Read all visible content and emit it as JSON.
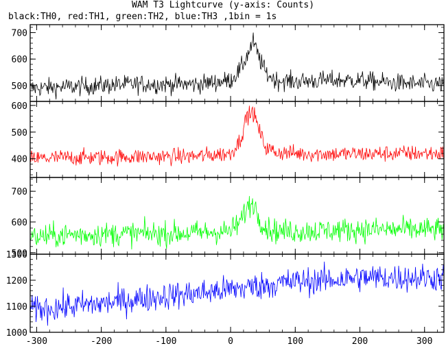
{
  "chart_data": {
    "type": "line",
    "title": "WAM T3 Lightcurve (y-axis: Counts)",
    "subtitle": "black:TH0, red:TH1, green:TH2, blue:TH3 ,1bin = 1s",
    "x_range": [
      -310,
      330
    ],
    "x_ticks": [
      -300,
      -200,
      -100,
      0,
      100,
      200,
      300
    ],
    "grid": false,
    "panels": [
      {
        "name": "TH0",
        "color": "#000000",
        "ylim": [
          440,
          730
        ],
        "y_ticks": [
          500,
          600,
          700
        ],
        "series_points": [
          [
            -310,
            490
          ],
          [
            -250,
            495
          ],
          [
            -200,
            500
          ],
          [
            -150,
            505
          ],
          [
            -100,
            505
          ],
          [
            -50,
            505
          ],
          [
            0,
            520
          ],
          [
            15,
            560
          ],
          [
            25,
            610
          ],
          [
            35,
            665
          ],
          [
            45,
            600
          ],
          [
            55,
            545
          ],
          [
            70,
            520
          ],
          [
            100,
            515
          ],
          [
            150,
            520
          ],
          [
            200,
            520
          ],
          [
            250,
            510
          ],
          [
            300,
            505
          ],
          [
            330,
            505
          ]
        ],
        "noise": 25
      },
      {
        "name": "TH1",
        "color": "#ff0000",
        "ylim": [
          330,
          615
        ],
        "y_ticks": [
          400,
          500,
          600
        ],
        "series_points": [
          [
            -310,
            400
          ],
          [
            -250,
            405
          ],
          [
            -200,
            405
          ],
          [
            -150,
            408
          ],
          [
            -100,
            408
          ],
          [
            -50,
            410
          ],
          [
            0,
            420
          ],
          [
            15,
            470
          ],
          [
            25,
            560
          ],
          [
            35,
            575
          ],
          [
            45,
            500
          ],
          [
            55,
            440
          ],
          [
            70,
            425
          ],
          [
            100,
            420
          ],
          [
            150,
            418
          ],
          [
            200,
            418
          ],
          [
            250,
            420
          ],
          [
            300,
            420
          ],
          [
            330,
            420
          ]
        ],
        "noise": 22
      },
      {
        "name": "TH2",
        "color": "#00ff00",
        "ylim": [
          495,
          745
        ],
        "y_ticks": [
          500,
          600,
          700
        ],
        "series_points": [
          [
            -310,
            550
          ],
          [
            -250,
            558
          ],
          [
            -200,
            560
          ],
          [
            -150,
            562
          ],
          [
            -100,
            562
          ],
          [
            -50,
            565
          ],
          [
            0,
            570
          ],
          [
            15,
            600
          ],
          [
            25,
            645
          ],
          [
            35,
            665
          ],
          [
            45,
            610
          ],
          [
            55,
            580
          ],
          [
            70,
            570
          ],
          [
            100,
            570
          ],
          [
            150,
            572
          ],
          [
            200,
            575
          ],
          [
            250,
            575
          ],
          [
            300,
            575
          ],
          [
            330,
            575
          ]
        ],
        "noise": 28
      },
      {
        "name": "TH3",
        "color": "#0000ff",
        "ylim": [
          1000,
          1300
        ],
        "y_ticks": [
          1000,
          1100,
          1200,
          1300
        ],
        "series_points": [
          [
            -310,
            1085
          ],
          [
            -250,
            1100
          ],
          [
            -200,
            1110
          ],
          [
            -150,
            1125
          ],
          [
            -100,
            1140
          ],
          [
            -50,
            1150
          ],
          [
            0,
            1165
          ],
          [
            50,
            1180
          ],
          [
            100,
            1195
          ],
          [
            150,
            1200
          ],
          [
            200,
            1210
          ],
          [
            250,
            1210
          ],
          [
            300,
            1210
          ],
          [
            330,
            1210
          ]
        ],
        "noise": 38
      }
    ]
  }
}
